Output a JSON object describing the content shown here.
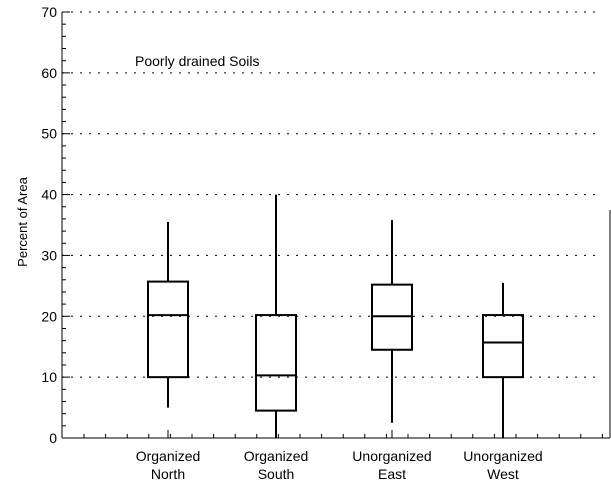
{
  "chart_data": {
    "type": "box",
    "annotation": "Poorly drained Soils",
    "ylabel": "Percent of Area",
    "ylim": [
      0,
      70
    ],
    "yticks": [
      0,
      10,
      20,
      30,
      40,
      50,
      60,
      70
    ],
    "grid": "horizontal dotted",
    "categories": [
      [
        "Organized",
        "North"
      ],
      [
        "Organized",
        "South"
      ],
      [
        "Unorganized",
        "East"
      ],
      [
        "Unorganized",
        "West"
      ]
    ],
    "boxes": [
      {
        "whisker_low": 5,
        "q1": 10,
        "median": 20.2,
        "q3": 25.7,
        "whisker_high": 35.5
      },
      {
        "whisker_low": 0,
        "q1": 4.5,
        "median": 10.3,
        "q3": 20.2,
        "whisker_high": 40
      },
      {
        "whisker_low": 2.5,
        "q1": 14.5,
        "median": 20,
        "q3": 25.2,
        "whisker_high": 35.8
      },
      {
        "whisker_low": 0,
        "q1": 10,
        "median": 15.7,
        "q3": 20.2,
        "whisker_high": 25.5
      }
    ],
    "colors": {
      "stroke": "#000000",
      "grid": "#000000",
      "background": "#ffffff"
    }
  }
}
